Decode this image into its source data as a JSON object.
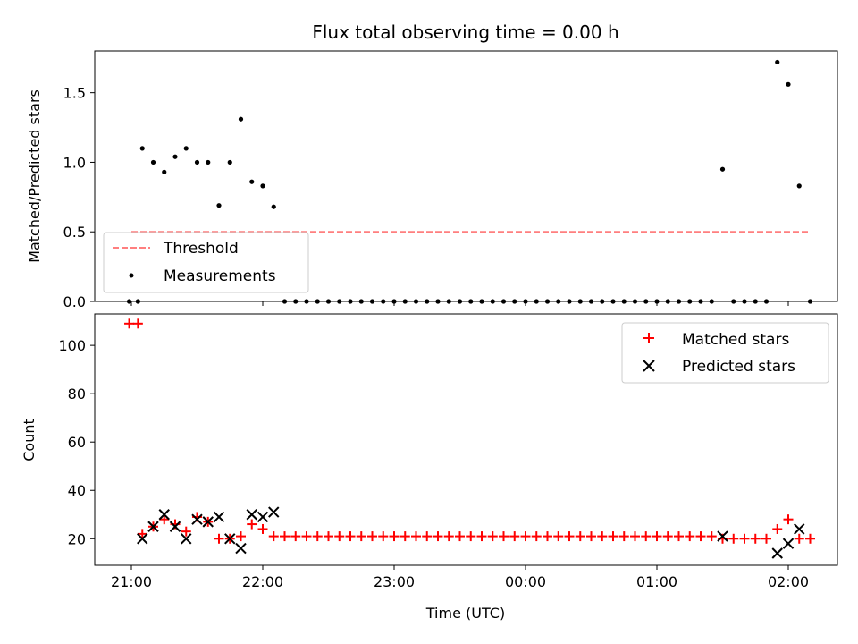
{
  "title": "Flux total observing time = 0.00 h",
  "xlabel": "Time (UTC)",
  "x_ticks": [
    "21:00",
    "22:00",
    "23:00",
    "00:00",
    "01:00",
    "02:00"
  ],
  "colors": {
    "threshold": "#ff7f7f",
    "measurement": "#000000",
    "matched": "#ff0000",
    "predicted": "#000000"
  },
  "chart_data": [
    {
      "type": "scatter",
      "ylabel": "Matched/Predicted stars",
      "ylim": [
        0,
        1.8
      ],
      "y_ticks": [
        "0.0",
        "0.5",
        "1.0",
        "1.5"
      ],
      "legend_position": "lower-left",
      "threshold": {
        "name": "Threshold",
        "value": 0.5,
        "x_range": [
          "21:00",
          "02:10"
        ]
      },
      "series": [
        {
          "name": "Measurements",
          "points": [
            [
              "20:59",
              0
            ],
            [
              "21:03",
              0
            ],
            [
              "21:05",
              1.1
            ],
            [
              "21:10",
              1.0
            ],
            [
              "21:15",
              0.93
            ],
            [
              "21:20",
              1.04
            ],
            [
              "21:25",
              1.1
            ],
            [
              "21:30",
              1.0
            ],
            [
              "21:35",
              1.0
            ],
            [
              "21:40",
              0.69
            ],
            [
              "21:45",
              1.0
            ],
            [
              "21:50",
              1.31
            ],
            [
              "21:55",
              0.86
            ],
            [
              "22:00",
              0.83
            ],
            [
              "22:05",
              0.68
            ],
            [
              "22:10",
              0
            ],
            [
              "22:15",
              0
            ],
            [
              "22:20",
              0
            ],
            [
              "22:25",
              0
            ],
            [
              "22:30",
              0
            ],
            [
              "22:35",
              0
            ],
            [
              "22:40",
              0
            ],
            [
              "22:45",
              0
            ],
            [
              "22:50",
              0
            ],
            [
              "22:55",
              0
            ],
            [
              "23:00",
              0
            ],
            [
              "23:05",
              0
            ],
            [
              "23:10",
              0
            ],
            [
              "23:15",
              0
            ],
            [
              "23:20",
              0
            ],
            [
              "23:25",
              0
            ],
            [
              "23:30",
              0
            ],
            [
              "23:35",
              0
            ],
            [
              "23:40",
              0
            ],
            [
              "23:45",
              0
            ],
            [
              "23:50",
              0
            ],
            [
              "23:55",
              0
            ],
            [
              "00:00",
              0
            ],
            [
              "00:05",
              0
            ],
            [
              "00:10",
              0
            ],
            [
              "00:15",
              0
            ],
            [
              "00:20",
              0
            ],
            [
              "00:25",
              0
            ],
            [
              "00:30",
              0
            ],
            [
              "00:35",
              0
            ],
            [
              "00:40",
              0
            ],
            [
              "00:45",
              0
            ],
            [
              "00:50",
              0
            ],
            [
              "00:55",
              0
            ],
            [
              "01:00",
              0
            ],
            [
              "01:05",
              0
            ],
            [
              "01:10",
              0
            ],
            [
              "01:15",
              0
            ],
            [
              "01:20",
              0
            ],
            [
              "01:25",
              0
            ],
            [
              "01:30",
              0.95
            ],
            [
              "01:35",
              0
            ],
            [
              "01:40",
              0
            ],
            [
              "01:45",
              0
            ],
            [
              "01:50",
              0
            ],
            [
              "01:55",
              1.72
            ],
            [
              "02:00",
              1.56
            ],
            [
              "02:05",
              0.83
            ],
            [
              "02:10",
              0
            ]
          ]
        }
      ]
    },
    {
      "type": "scatter",
      "ylabel": "Count",
      "ylim": [
        9,
        113
      ],
      "y_ticks": [
        "20",
        "40",
        "60",
        "80",
        "100"
      ],
      "legend_position": "upper-right",
      "series": [
        {
          "name": "Matched stars",
          "points": [
            [
              "20:59",
              109
            ],
            [
              "21:03",
              109
            ],
            [
              "21:05",
              22
            ],
            [
              "21:10",
              25
            ],
            [
              "21:15",
              28
            ],
            [
              "21:20",
              26
            ],
            [
              "21:25",
              23
            ],
            [
              "21:30",
              29
            ],
            [
              "21:35",
              27
            ],
            [
              "21:40",
              20
            ],
            [
              "21:45",
              20
            ],
            [
              "21:50",
              21
            ],
            [
              "21:55",
              26
            ],
            [
              "22:00",
              24
            ],
            [
              "22:05",
              21
            ],
            [
              "22:10",
              21
            ],
            [
              "22:15",
              21
            ],
            [
              "22:20",
              21
            ],
            [
              "22:25",
              21
            ],
            [
              "22:30",
              21
            ],
            [
              "22:35",
              21
            ],
            [
              "22:40",
              21
            ],
            [
              "22:45",
              21
            ],
            [
              "22:50",
              21
            ],
            [
              "22:55",
              21
            ],
            [
              "23:00",
              21
            ],
            [
              "23:05",
              21
            ],
            [
              "23:10",
              21
            ],
            [
              "23:15",
              21
            ],
            [
              "23:20",
              21
            ],
            [
              "23:25",
              21
            ],
            [
              "23:30",
              21
            ],
            [
              "23:35",
              21
            ],
            [
              "23:40",
              21
            ],
            [
              "23:45",
              21
            ],
            [
              "23:50",
              21
            ],
            [
              "23:55",
              21
            ],
            [
              "00:00",
              21
            ],
            [
              "00:05",
              21
            ],
            [
              "00:10",
              21
            ],
            [
              "00:15",
              21
            ],
            [
              "00:20",
              21
            ],
            [
              "00:25",
              21
            ],
            [
              "00:30",
              21
            ],
            [
              "00:35",
              21
            ],
            [
              "00:40",
              21
            ],
            [
              "00:45",
              21
            ],
            [
              "00:50",
              21
            ],
            [
              "00:55",
              21
            ],
            [
              "01:00",
              21
            ],
            [
              "01:05",
              21
            ],
            [
              "01:10",
              21
            ],
            [
              "01:15",
              21
            ],
            [
              "01:20",
              21
            ],
            [
              "01:25",
              21
            ],
            [
              "01:30",
              20
            ],
            [
              "01:35",
              20
            ],
            [
              "01:40",
              20
            ],
            [
              "01:45",
              20
            ],
            [
              "01:50",
              20
            ],
            [
              "01:55",
              24
            ],
            [
              "02:00",
              28
            ],
            [
              "02:05",
              20
            ],
            [
              "02:10",
              20
            ]
          ]
        },
        {
          "name": "Predicted stars",
          "points": [
            [
              "21:05",
              20
            ],
            [
              "21:10",
              25
            ],
            [
              "21:15",
              30
            ],
            [
              "21:20",
              25
            ],
            [
              "21:25",
              20
            ],
            [
              "21:30",
              28
            ],
            [
              "21:35",
              27
            ],
            [
              "21:40",
              29
            ],
            [
              "21:45",
              20
            ],
            [
              "21:50",
              16
            ],
            [
              "21:55",
              30
            ],
            [
              "22:00",
              29
            ],
            [
              "22:05",
              31
            ],
            [
              "01:30",
              21
            ],
            [
              "01:55",
              14
            ],
            [
              "02:00",
              18
            ],
            [
              "02:05",
              24
            ]
          ]
        }
      ]
    }
  ]
}
